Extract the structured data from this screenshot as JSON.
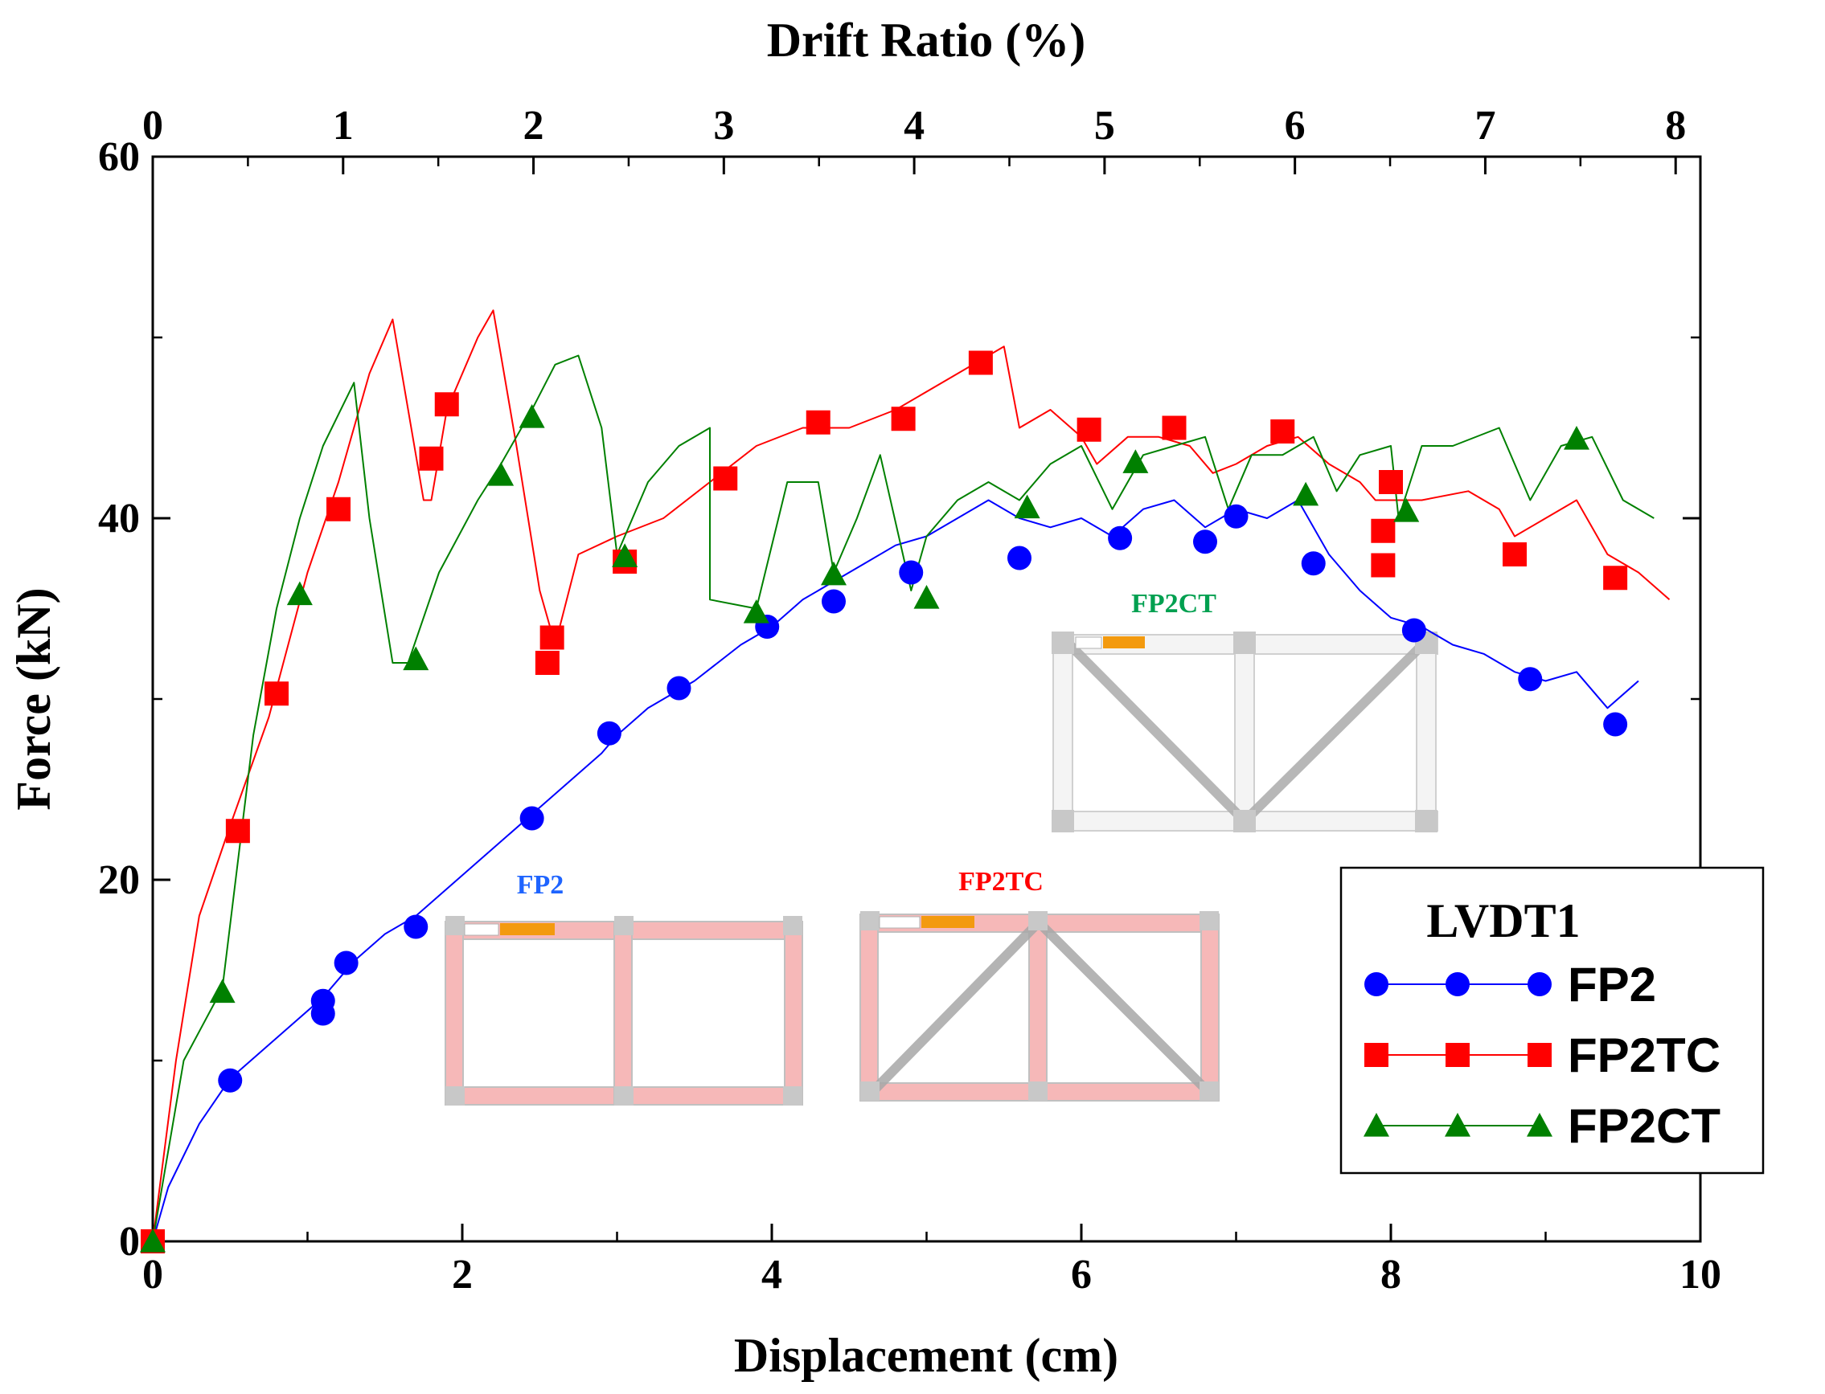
{
  "chart_data": {
    "type": "line",
    "title": "",
    "xlabel": "Displacement (cm)",
    "ylabel": "Force (kN)",
    "top_xlabel": "Drift Ratio (%)",
    "xlim": [
      0,
      10
    ],
    "ylim": [
      0,
      60
    ],
    "top_xlim": [
      0,
      8.13
    ],
    "xticks": [
      "0",
      "2",
      "4",
      "6",
      "8",
      "10"
    ],
    "yticks": [
      "0",
      "20",
      "40",
      "60"
    ],
    "top_xticks": [
      "0",
      "1",
      "2",
      "3",
      "4",
      "5",
      "6",
      "7",
      "8"
    ],
    "legend_title": "LVDT1",
    "legend_position": "bottom-right",
    "series": [
      {
        "name": "FP2",
        "color": "#0000ff",
        "marker": "circle",
        "x": [
          0,
          0.1,
          0.3,
          0.5,
          0.7,
          0.9,
          1.1,
          1.3,
          1.5,
          1.7,
          1.9,
          2.1,
          2.3,
          2.5,
          2.7,
          2.9,
          3.0,
          3.2,
          3.5,
          3.8,
          4.0,
          4.2,
          4.4,
          4.6,
          4.8,
          5.0,
          5.2,
          5.4,
          5.6,
          5.8,
          6.0,
          6.2,
          6.4,
          6.6,
          6.8,
          7.0,
          7.2,
          7.4,
          7.6,
          7.8,
          8.0,
          8.2,
          8.4,
          8.6,
          8.8,
          9.0,
          9.2,
          9.4,
          9.6
        ],
        "y": [
          0,
          3,
          6.5,
          9,
          10.5,
          12,
          13.5,
          15.5,
          17,
          18,
          19.5,
          21,
          22.5,
          24,
          25.5,
          27,
          28,
          29.5,
          31,
          33,
          34,
          35.5,
          36.5,
          37.5,
          38.5,
          39,
          40,
          41,
          40,
          39.5,
          40,
          39,
          40.5,
          41,
          39.5,
          40.5,
          40,
          41,
          38,
          36,
          34.5,
          34,
          33,
          32.5,
          31.5,
          31,
          31.5,
          29.5,
          31
        ],
        "marker_x": [
          0,
          0.5,
          1.1,
          1.1,
          1.25,
          1.7,
          2.45,
          2.95,
          3.4,
          3.97,
          4.4,
          4.9,
          5.6,
          6.25,
          6.8,
          7.0,
          7.5,
          8.15,
          8.9,
          9.45
        ],
        "marker_y": [
          0,
          8.9,
          12.6,
          13.3,
          15.4,
          17.4,
          23.4,
          28.1,
          30.6,
          34.0,
          35.4,
          37.0,
          37.8,
          38.9,
          38.7,
          40.1,
          37.5,
          33.8,
          31.1,
          28.6
        ]
      },
      {
        "name": "FP2TC",
        "color": "#ff0000",
        "marker": "square",
        "x": [
          0,
          0.15,
          0.3,
          0.5,
          0.75,
          1.0,
          1.2,
          1.4,
          1.55,
          1.75,
          1.8,
          1.9,
          2.1,
          2.2,
          2.35,
          2.5,
          2.6,
          2.75,
          3.0,
          3.3,
          3.6,
          3.9,
          4.2,
          4.5,
          4.8,
          5.1,
          5.3,
          5.5,
          5.6,
          5.8,
          6.0,
          6.1,
          6.3,
          6.5,
          6.7,
          6.85,
          7.0,
          7.2,
          7.4,
          7.6,
          7.8,
          7.9,
          8.0,
          8.2,
          8.5,
          8.7,
          8.8,
          9.0,
          9.2,
          9.4,
          9.6,
          9.8
        ],
        "y": [
          0,
          10,
          18,
          23,
          29,
          37,
          42,
          48,
          51,
          41,
          41,
          46,
          50,
          51.5,
          44,
          36,
          33,
          38,
          39,
          40,
          42,
          44,
          45,
          45,
          46,
          47.5,
          48.5,
          49.5,
          45,
          46,
          44.5,
          43,
          44.5,
          44.5,
          44,
          42.5,
          43,
          44,
          44.5,
          43,
          42,
          41,
          41,
          41,
          41.5,
          40.5,
          39,
          40,
          41,
          38,
          37,
          35.5
        ],
        "marker_x": [
          0,
          0.55,
          0.8,
          1.2,
          1.8,
          1.9,
          2.55,
          2.58,
          3.05,
          3.7,
          4.3,
          4.85,
          5.35,
          6.05,
          6.6,
          7.3,
          7.95,
          7.95,
          8.0,
          8.8,
          9.45
        ],
        "marker_y": [
          0,
          22.7,
          30.3,
          40.5,
          43.3,
          46.3,
          32.0,
          33.4,
          37.6,
          42.2,
          45.3,
          45.5,
          48.6,
          44.9,
          45.0,
          44.8,
          39.3,
          37.4,
          42.0,
          38.0,
          36.7
        ]
      },
      {
        "name": "FP2CT",
        "color": "#008000",
        "marker": "triangle",
        "x": [
          0,
          0.2,
          0.45,
          0.65,
          0.8,
          0.95,
          1.1,
          1.3,
          1.4,
          1.55,
          1.65,
          1.85,
          2.1,
          2.25,
          2.45,
          2.6,
          2.75,
          2.9,
          3.0,
          3.2,
          3.4,
          3.6,
          3.6,
          3.9,
          4.1,
          4.3,
          4.4,
          4.55,
          4.7,
          4.9,
          5.0,
          5.2,
          5.4,
          5.6,
          5.8,
          6.0,
          6.2,
          6.4,
          6.6,
          6.8,
          6.95,
          7.1,
          7.3,
          7.5,
          7.65,
          7.8,
          8.0,
          8.05,
          8.2,
          8.4,
          8.7,
          8.9,
          9.1,
          9.3,
          9.5,
          9.7
        ],
        "y": [
          0,
          10,
          14,
          28,
          35,
          40,
          44,
          47.5,
          40,
          32,
          32,
          37,
          41,
          43,
          46,
          48.5,
          49,
          45,
          38,
          42,
          44,
          45,
          35.5,
          35,
          42,
          42,
          37,
          40,
          43.5,
          36,
          39,
          41,
          42,
          41,
          43,
          44,
          40.5,
          43.5,
          44,
          44.5,
          40.5,
          43.5,
          43.5,
          44.5,
          41.5,
          43.5,
          44,
          40,
          44,
          44,
          45,
          41,
          44,
          44.5,
          41,
          40
        ],
        "marker_x": [
          0,
          0.45,
          0.95,
          1.7,
          2.25,
          2.45,
          3.05,
          3.9,
          4.4,
          5.0,
          5.65,
          6.35,
          7.45,
          8.1,
          9.2
        ],
        "marker_y": [
          0,
          13.8,
          35.8,
          32.2,
          42.4,
          45.6,
          37.9,
          34.8,
          36.9,
          35.6,
          40.6,
          43.1,
          41.3,
          40.4,
          44.4
        ]
      }
    ]
  },
  "insets": {
    "fp2_label": "FP2",
    "fp2tc_label": "FP2TC",
    "fp2ct_label": "FP2CT",
    "fp2_color": "#1e64ff",
    "fp2tc_color": "#ff0000",
    "fp2ct_color": "#00a050"
  }
}
